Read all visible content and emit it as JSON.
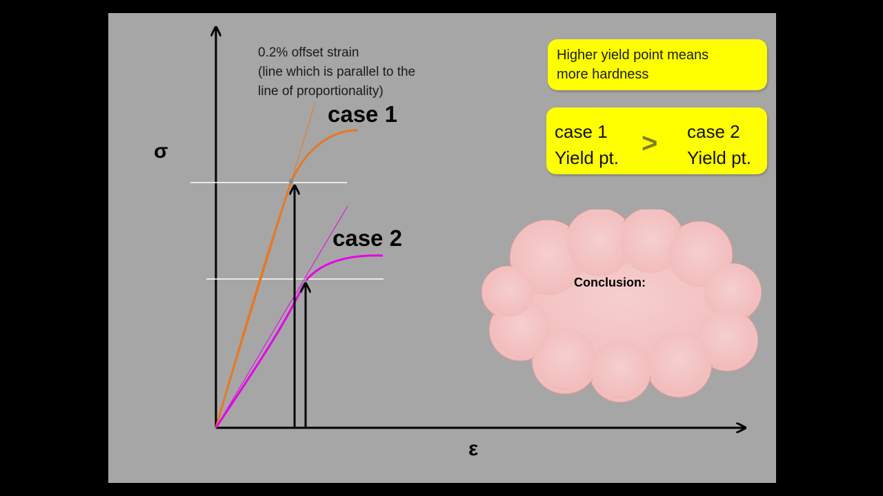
{
  "diagram": {
    "y_axis_symbol": "σ",
    "x_axis_symbol": "ε",
    "offset_note": [
      "0.2% offset strain",
      "(line which is parallel to the",
      "line of proportionality)"
    ],
    "case1_label": "case 1",
    "case2_label": "case 2",
    "colors": {
      "background": "#a6a6a6",
      "case1": "#e87722",
      "case2": "#e600e6",
      "axis": "#000000",
      "yield_line": "#ffffff",
      "box": "#ffff00",
      "cloud": "#f4c2c2"
    }
  },
  "info_box": {
    "line1": "Higher yield point means",
    "line2": "more hardness"
  },
  "comparison_box": {
    "left_line1": "case 1",
    "left_line2": "Yield pt.",
    "symbol": ">",
    "right_line1": "case 2",
    "right_line2": "Yield pt."
  },
  "cloud": {
    "text": "Conclusion:"
  }
}
